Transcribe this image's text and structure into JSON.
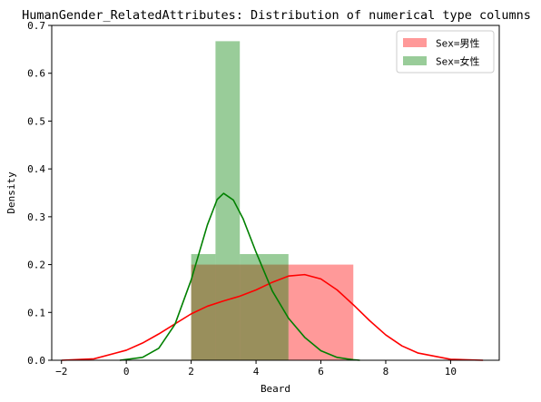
{
  "chart_data": {
    "type": "bar",
    "title": "HumanGender_RelatedAttributes: Distribution of numerical type columns",
    "xlabel": "Beard",
    "ylabel": "Density",
    "xlim": [
      -2.3,
      11.5
    ],
    "ylim": [
      0,
      0.7
    ],
    "xticks": [
      -2,
      0,
      2,
      4,
      6,
      8,
      10
    ],
    "yticks": [
      0.0,
      0.1,
      0.2,
      0.3,
      0.4,
      0.5,
      0.6,
      0.7
    ],
    "grid": false,
    "legend_position": "top-right",
    "series": [
      {
        "name": "Sex=男性",
        "color": "#ff0000",
        "bar_alpha": 0.4,
        "bins": [
          {
            "x0": 2.0,
            "x1": 5.0,
            "value": 0.2
          },
          {
            "x0": 5.0,
            "x1": 7.0,
            "value": 0.2
          }
        ],
        "kde": {
          "x": [
            -2.0,
            -1.0,
            0.0,
            0.5,
            1.0,
            1.5,
            2.0,
            2.5,
            3.0,
            3.5,
            4.0,
            4.5,
            5.0,
            5.5,
            6.0,
            6.5,
            7.0,
            7.5,
            8.0,
            8.5,
            9.0,
            10.0,
            11.0
          ],
          "y": [
            0.0,
            0.003,
            0.021,
            0.036,
            0.055,
            0.076,
            0.097,
            0.113,
            0.124,
            0.134,
            0.147,
            0.163,
            0.176,
            0.179,
            0.17,
            0.147,
            0.116,
            0.083,
            0.053,
            0.03,
            0.015,
            0.002,
            0.0
          ]
        }
      },
      {
        "name": "Sex=女性",
        "color": "#008000",
        "bar_alpha": 0.4,
        "bins": [
          {
            "x0": 2.0,
            "x1": 2.75,
            "value": 0.222
          },
          {
            "x0": 2.75,
            "x1": 3.5,
            "value": 0.667
          },
          {
            "x0": 3.5,
            "x1": 5.0,
            "value": 0.222
          }
        ],
        "kde": {
          "x": [
            -0.2,
            0.5,
            1.0,
            1.5,
            2.0,
            2.5,
            2.8,
            3.0,
            3.3,
            3.6,
            4.0,
            4.5,
            5.0,
            5.5,
            6.0,
            6.5,
            7.0,
            7.2
          ],
          "y": [
            0.0,
            0.006,
            0.025,
            0.075,
            0.168,
            0.283,
            0.336,
            0.349,
            0.335,
            0.296,
            0.226,
            0.145,
            0.088,
            0.048,
            0.02,
            0.006,
            0.001,
            0.0
          ]
        }
      }
    ]
  }
}
